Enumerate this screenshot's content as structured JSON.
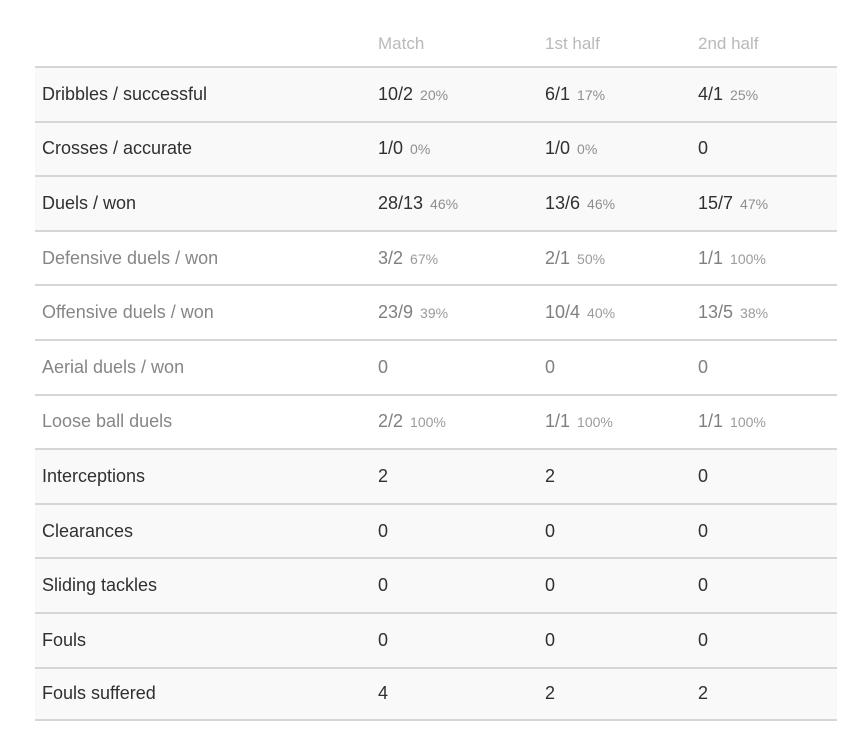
{
  "table": {
    "columns": [
      "Match",
      "1st half",
      "2nd half"
    ],
    "rows": [
      {
        "label": "Dribbles / successful",
        "style": "primary",
        "cells": [
          {
            "value": "10/2",
            "pct": "20%"
          },
          {
            "value": "6/1",
            "pct": "17%"
          },
          {
            "value": "4/1",
            "pct": "25%"
          }
        ]
      },
      {
        "label": "Crosses / accurate",
        "style": "primary",
        "cells": [
          {
            "value": "1/0",
            "pct": "0%"
          },
          {
            "value": "1/0",
            "pct": "0%"
          },
          {
            "value": "0",
            "pct": ""
          }
        ]
      },
      {
        "label": "Duels / won",
        "style": "primary",
        "cells": [
          {
            "value": "28/13",
            "pct": "46%"
          },
          {
            "value": "13/6",
            "pct": "46%"
          },
          {
            "value": "15/7",
            "pct": "47%"
          }
        ]
      },
      {
        "label": "Defensive duels / won",
        "style": "secondary",
        "cells": [
          {
            "value": "3/2",
            "pct": "67%"
          },
          {
            "value": "2/1",
            "pct": "50%"
          },
          {
            "value": "1/1",
            "pct": "100%"
          }
        ]
      },
      {
        "label": "Offensive duels / won",
        "style": "secondary",
        "cells": [
          {
            "value": "23/9",
            "pct": "39%"
          },
          {
            "value": "10/4",
            "pct": "40%"
          },
          {
            "value": "13/5",
            "pct": "38%"
          }
        ]
      },
      {
        "label": "Aerial duels / won",
        "style": "secondary",
        "cells": [
          {
            "value": "0",
            "pct": ""
          },
          {
            "value": "0",
            "pct": ""
          },
          {
            "value": "0",
            "pct": ""
          }
        ]
      },
      {
        "label": "Loose ball duels",
        "style": "secondary",
        "cells": [
          {
            "value": "2/2",
            "pct": "100%"
          },
          {
            "value": "1/1",
            "pct": "100%"
          },
          {
            "value": "1/1",
            "pct": "100%"
          }
        ]
      },
      {
        "label": "Interceptions",
        "style": "primary",
        "cells": [
          {
            "value": "2",
            "pct": ""
          },
          {
            "value": "2",
            "pct": ""
          },
          {
            "value": "0",
            "pct": ""
          }
        ]
      },
      {
        "label": "Clearances",
        "style": "primary",
        "cells": [
          {
            "value": "0",
            "pct": ""
          },
          {
            "value": "0",
            "pct": ""
          },
          {
            "value": "0",
            "pct": ""
          }
        ]
      },
      {
        "label": "Sliding tackles",
        "style": "primary",
        "cells": [
          {
            "value": "0",
            "pct": ""
          },
          {
            "value": "0",
            "pct": ""
          },
          {
            "value": "0",
            "pct": ""
          }
        ]
      },
      {
        "label": "Fouls",
        "style": "primary",
        "cells": [
          {
            "value": "0",
            "pct": ""
          },
          {
            "value": "0",
            "pct": ""
          },
          {
            "value": "0",
            "pct": ""
          }
        ]
      },
      {
        "label": "Fouls suffered",
        "style": "primary",
        "cells": [
          {
            "value": "4",
            "pct": ""
          },
          {
            "value": "2",
            "pct": ""
          },
          {
            "value": "2",
            "pct": ""
          }
        ]
      }
    ],
    "colors": {
      "stripe_background": "#f9f9f9",
      "row_divider": "#d6d6d6",
      "primary_text": "#303030",
      "secondary_text": "#868686",
      "header_text": "#b9b9b9",
      "percentage_text": "#8e8e8e"
    }
  }
}
